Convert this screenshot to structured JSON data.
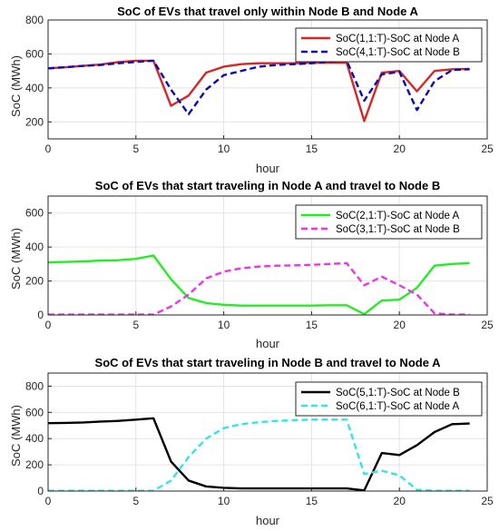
{
  "chart_data": [
    {
      "type": "line",
      "title": "SoC of EVs that travel only within Node B and Node A",
      "xlabel": "hour",
      "ylabel": "SoC (MWh)",
      "xlim": [
        0,
        25
      ],
      "ylim": [
        100,
        800
      ],
      "xticks": [
        0,
        5,
        10,
        15,
        20,
        25
      ],
      "yticks": [
        200,
        400,
        600,
        800
      ],
      "grid": true,
      "legend": "top-right",
      "x": [
        0,
        1,
        2,
        3,
        4,
        5,
        6,
        7,
        8,
        9,
        10,
        11,
        12,
        13,
        14,
        15,
        16,
        17,
        18,
        19,
        20,
        21,
        22,
        23,
        24
      ],
      "series": [
        {
          "name": "SoC(1,1:T)-SoC at Node A",
          "color": "#d62728",
          "dash": "solid",
          "values": [
            515,
            522,
            530,
            538,
            552,
            560,
            560,
            295,
            355,
            490,
            525,
            540,
            545,
            545,
            545,
            548,
            548,
            548,
            205,
            490,
            500,
            380,
            500,
            510,
            512
          ]
        },
        {
          "name": "SoC(4,1:T)-SoC at Node B",
          "color": "#0b0bb5",
          "dash": "dashed",
          "values": [
            515,
            522,
            530,
            535,
            545,
            553,
            560,
            390,
            245,
            390,
            475,
            500,
            525,
            535,
            540,
            545,
            555,
            560,
            325,
            480,
            495,
            270,
            440,
            505,
            510
          ]
        }
      ]
    },
    {
      "type": "line",
      "title": "SoC of EVs that start traveling in Node A and travel to Node B",
      "xlabel": "hour",
      "ylabel": "SoC (MWh)",
      "xlim": [
        0,
        25
      ],
      "ylim": [
        0,
        700
      ],
      "xticks": [
        0,
        5,
        10,
        15,
        20,
        25
      ],
      "yticks": [
        0,
        200,
        400,
        600
      ],
      "grid": true,
      "legend": "top-right",
      "x": [
        0,
        1,
        2,
        3,
        4,
        5,
        6,
        7,
        8,
        9,
        10,
        11,
        12,
        13,
        14,
        15,
        16,
        17,
        18,
        19,
        20,
        21,
        22,
        23,
        24
      ],
      "series": [
        {
          "name": "SoC(2,1:T)-SoC at Node A",
          "color": "#22ee22",
          "dash": "solid",
          "values": [
            310,
            312,
            315,
            320,
            322,
            330,
            350,
            210,
            100,
            70,
            60,
            55,
            55,
            55,
            55,
            55,
            57,
            57,
            5,
            85,
            90,
            160,
            290,
            300,
            305
          ]
        },
        {
          "name": "SoC(3,1:T)-SoC at Node B",
          "color": "#ee33ee",
          "dash": "dashed",
          "values": [
            2,
            2,
            2,
            2,
            2,
            2,
            2,
            50,
            120,
            215,
            255,
            275,
            285,
            290,
            292,
            295,
            300,
            305,
            175,
            225,
            175,
            120,
            10,
            2,
            2
          ]
        }
      ]
    },
    {
      "type": "line",
      "title": "SoC of EVs that start traveling in Node B and travel to Node A",
      "xlabel": "hour",
      "ylabel": "SoC (MWh)",
      "xlim": [
        0,
        25
      ],
      "ylim": [
        0,
        900
      ],
      "xticks": [
        0,
        5,
        10,
        15,
        20,
        25
      ],
      "yticks": [
        0,
        200,
        400,
        600,
        800
      ],
      "grid": true,
      "legend": "top-right",
      "x": [
        0,
        1,
        2,
        3,
        4,
        5,
        6,
        7,
        8,
        9,
        10,
        11,
        12,
        13,
        14,
        15,
        16,
        17,
        18,
        19,
        20,
        21,
        22,
        23,
        24
      ],
      "series": [
        {
          "name": "SoC(5,1:T)-SoC at Node B",
          "color": "#000000",
          "dash": "solid",
          "values": [
            518,
            520,
            523,
            530,
            535,
            545,
            555,
            225,
            80,
            35,
            25,
            20,
            20,
            20,
            20,
            20,
            20,
            20,
            5,
            290,
            275,
            350,
            450,
            510,
            515
          ]
        },
        {
          "name": "SoC(6,1:T)-SoC at Node A",
          "color": "#33e6e6",
          "dash": "dashed",
          "values": [
            2,
            2,
            2,
            2,
            2,
            2,
            2,
            80,
            260,
            400,
            480,
            510,
            525,
            535,
            540,
            545,
            545,
            545,
            130,
            155,
            120,
            10,
            2,
            2,
            2
          ]
        }
      ]
    }
  ]
}
